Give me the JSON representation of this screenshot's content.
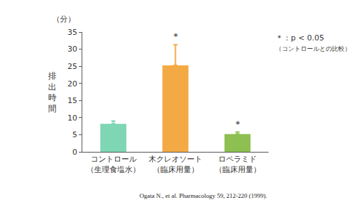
{
  "chart_data": {
    "type": "bar",
    "ylabel": "排出時間",
    "y_unit": "（分）",
    "categories": [
      "コントロール\n（生理食塩水）",
      "木クレオソート\n（臨床用量）",
      "ロペラミド\n（臨床用量）"
    ],
    "values": [
      8.2,
      25.3,
      5.2
    ],
    "errors": [
      0.8,
      6.0,
      0.6
    ],
    "colors": [
      "#7fd6b4",
      "#f4aa44",
      "#8dc050"
    ],
    "ylim": [
      0,
      35
    ],
    "yticks": [
      0,
      5,
      10,
      15,
      20,
      25,
      30,
      35
    ],
    "grid": false,
    "annotations": [
      {
        "category": "木クレオソート\n（臨床用量）",
        "text": "＊"
      },
      {
        "category": "ロペラミド\n（臨床用量）",
        "text": "＊"
      }
    ],
    "note": [
      "＊：p < 0.05",
      "（コントロールとの比較）"
    ],
    "source": "Ogata N., et al. Pharmacology 59, 212-220 (1999)."
  }
}
